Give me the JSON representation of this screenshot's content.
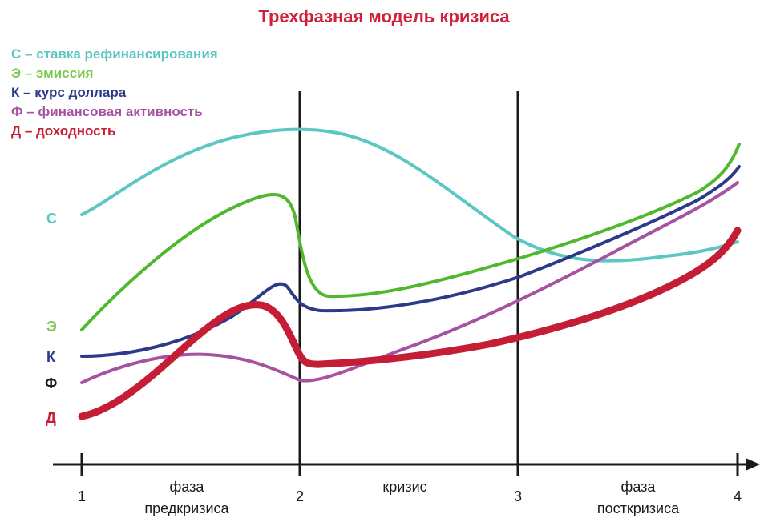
{
  "title": "Трехфазная модель кризиса",
  "legend": [
    {
      "text": "С – ставка рефинансирования",
      "color": "#5cc7c2"
    },
    {
      "text": "Э – эмиссия",
      "color": "#7cc94e"
    },
    {
      "text": "К – курс доллара",
      "color": "#2c3a8a"
    },
    {
      "text": "Ф – финансовая активность",
      "color": "#a552a0"
    },
    {
      "text": "Д – доходность",
      "color": "#c41d35"
    }
  ],
  "curve_labels": [
    {
      "text": "С",
      "color": "#5cc7c2"
    },
    {
      "text": "Э",
      "color": "#7cc94e"
    },
    {
      "text": "К",
      "color": "#2c3a8a"
    },
    {
      "text": "Ф",
      "color": "#1a1a1a"
    },
    {
      "text": "Д",
      "color": "#c41d35"
    }
  ],
  "axis_points": [
    "1",
    "2",
    "3",
    "4"
  ],
  "phases": [
    {
      "line1": "фаза",
      "line2": "предкризиса"
    },
    {
      "line1": "кризис",
      "line2": ""
    },
    {
      "line1": "фаза",
      "line2": "посткризиса"
    }
  ],
  "colors": {
    "title": "#d0203a",
    "axis": "#1a1a1a",
    "c": "#5cc7c2",
    "e": "#4fb82d",
    "k": "#2c3a8a",
    "f": "#a552a0",
    "d": "#c41d35"
  }
}
